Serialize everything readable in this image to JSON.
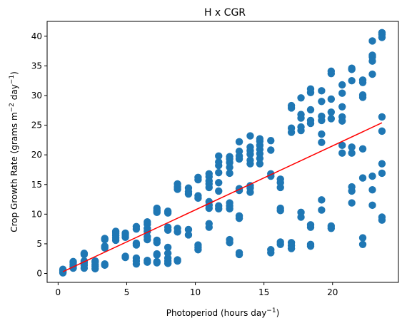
{
  "chart_data": {
    "type": "scatter",
    "title": "H x CGR",
    "xlabel": "Photoperiod (hours day",
    "xlabel_sup": "−1",
    "xlabel_tail": ")",
    "ylabel": "Crop Growth Rate (grams m",
    "ylabel_sup1": "−2",
    "ylabel_mid": " day",
    "ylabel_sup2": "−1",
    "ylabel_tail": ")",
    "xlim": [
      -0.8,
      24.8
    ],
    "ylim": [
      -1.5,
      42.5
    ],
    "xticks": [
      0,
      5,
      10,
      15,
      20
    ],
    "yticks": [
      0,
      5,
      10,
      15,
      20,
      25,
      30,
      35,
      40
    ],
    "grid": false,
    "point_color": "#1f77b4",
    "line_color": "#ff0000",
    "fit_line": {
      "x": [
        0.35,
        23.6
      ],
      "y": [
        0.3,
        25.4
      ]
    },
    "points": [
      [
        0.35,
        0.1
      ],
      [
        0.35,
        0.3
      ],
      [
        0.35,
        0.5
      ],
      [
        0.35,
        0.7
      ],
      [
        1.1,
        0.9
      ],
      [
        1.1,
        1.2
      ],
      [
        1.1,
        1.5
      ],
      [
        1.1,
        1.8
      ],
      [
        1.1,
        2.0
      ],
      [
        1.9,
        0.9
      ],
      [
        1.9,
        1.4
      ],
      [
        1.9,
        1.8
      ],
      [
        1.9,
        2.1
      ],
      [
        1.9,
        3.2
      ],
      [
        1.9,
        3.4
      ],
      [
        2.7,
        0.8
      ],
      [
        2.7,
        1.2
      ],
      [
        2.7,
        1.5
      ],
      [
        2.7,
        1.9
      ],
      [
        2.7,
        2.1
      ],
      [
        3.4,
        1.4
      ],
      [
        3.4,
        1.6
      ],
      [
        3.4,
        4.3
      ],
      [
        3.4,
        4.6
      ],
      [
        3.4,
        5.7
      ],
      [
        3.4,
        5.9
      ],
      [
        4.2,
        5.6
      ],
      [
        4.2,
        6.0
      ],
      [
        4.2,
        6.4
      ],
      [
        4.2,
        6.8
      ],
      [
        4.2,
        7.1
      ],
      [
        4.9,
        2.7
      ],
      [
        4.9,
        2.9
      ],
      [
        4.9,
        6.1
      ],
      [
        4.9,
        6.5
      ],
      [
        4.9,
        6.8
      ],
      [
        5.7,
        1.6
      ],
      [
        5.7,
        2.1
      ],
      [
        5.7,
        2.6
      ],
      [
        5.7,
        4.8
      ],
      [
        5.7,
        5.1
      ],
      [
        5.7,
        7.5
      ],
      [
        5.7,
        7.9
      ],
      [
        6.5,
        1.9
      ],
      [
        6.5,
        2.2
      ],
      [
        6.5,
        5.7
      ],
      [
        6.5,
        6.2
      ],
      [
        6.5,
        7.1
      ],
      [
        6.5,
        7.6
      ],
      [
        6.5,
        8.3
      ],
      [
        6.5,
        8.7
      ],
      [
        7.2,
        1.8
      ],
      [
        7.2,
        2.0
      ],
      [
        7.2,
        3.1
      ],
      [
        7.2,
        3.3
      ],
      [
        7.2,
        5.2
      ],
      [
        7.2,
        5.6
      ],
      [
        7.2,
        10.3
      ],
      [
        7.2,
        10.6
      ],
      [
        7.2,
        11.0
      ],
      [
        8.0,
        1.7
      ],
      [
        8.0,
        2.1
      ],
      [
        8.0,
        2.6
      ],
      [
        8.0,
        3.4
      ],
      [
        8.0,
        4.4
      ],
      [
        8.0,
        7.3
      ],
      [
        8.0,
        7.8
      ],
      [
        8.0,
        10.2
      ],
      [
        8.0,
        10.5
      ],
      [
        8.7,
        2.1
      ],
      [
        8.7,
        2.3
      ],
      [
        8.7,
        7.0
      ],
      [
        8.7,
        7.6
      ],
      [
        8.7,
        14.2
      ],
      [
        8.7,
        14.6
      ],
      [
        8.7,
        15.1
      ],
      [
        9.5,
        6.5
      ],
      [
        9.5,
        7.4
      ],
      [
        9.5,
        13.4
      ],
      [
        9.5,
        13.8
      ],
      [
        9.5,
        14.4
      ],
      [
        10.2,
        4.0
      ],
      [
        10.2,
        4.4
      ],
      [
        10.2,
        4.8
      ],
      [
        10.2,
        12.7
      ],
      [
        10.2,
        13.1
      ],
      [
        10.2,
        15.8
      ],
      [
        10.2,
        16.2
      ],
      [
        11.0,
        7.8
      ],
      [
        11.0,
        8.4
      ],
      [
        11.0,
        11.0
      ],
      [
        11.0,
        11.5
      ],
      [
        11.0,
        12.1
      ],
      [
        11.0,
        14.5
      ],
      [
        11.0,
        15.1
      ],
      [
        11.0,
        15.6
      ],
      [
        11.0,
        16.3
      ],
      [
        11.0,
        16.8
      ],
      [
        11.7,
        10.9
      ],
      [
        11.7,
        11.4
      ],
      [
        11.7,
        13.9
      ],
      [
        11.7,
        15.3
      ],
      [
        11.7,
        17.0
      ],
      [
        11.7,
        18.2
      ],
      [
        11.7,
        18.8
      ],
      [
        11.7,
        19.8
      ],
      [
        12.5,
        5.2
      ],
      [
        12.5,
        5.7
      ],
      [
        12.5,
        10.9
      ],
      [
        12.5,
        11.4
      ],
      [
        12.5,
        11.9
      ],
      [
        12.5,
        16.9
      ],
      [
        12.5,
        17.9
      ],
      [
        12.5,
        18.7
      ],
      [
        12.5,
        19.3
      ],
      [
        12.5,
        19.7
      ],
      [
        13.2,
        3.2
      ],
      [
        13.2,
        3.5
      ],
      [
        13.2,
        9.3
      ],
      [
        13.2,
        9.7
      ],
      [
        13.2,
        14.0
      ],
      [
        13.2,
        14.3
      ],
      [
        13.2,
        19.3
      ],
      [
        13.2,
        19.8
      ],
      [
        13.2,
        20.6
      ],
      [
        13.2,
        22.2
      ],
      [
        14.0,
        13.7
      ],
      [
        14.0,
        14.4
      ],
      [
        14.0,
        14.8
      ],
      [
        14.0,
        18.5
      ],
      [
        14.0,
        19.1
      ],
      [
        14.0,
        20.1
      ],
      [
        14.0,
        20.7
      ],
      [
        14.0,
        21.3
      ],
      [
        14.0,
        23.2
      ],
      [
        14.7,
        18.5
      ],
      [
        14.7,
        19.4
      ],
      [
        14.7,
        20.2
      ],
      [
        14.7,
        20.9
      ],
      [
        14.7,
        21.6
      ],
      [
        14.7,
        22.3
      ],
      [
        14.7,
        22.7
      ],
      [
        15.5,
        3.5
      ],
      [
        15.5,
        4.0
      ],
      [
        15.5,
        16.4
      ],
      [
        15.5,
        16.8
      ],
      [
        15.5,
        20.8
      ],
      [
        15.5,
        22.4
      ],
      [
        16.2,
        4.9
      ],
      [
        16.2,
        5.3
      ],
      [
        16.2,
        10.6
      ],
      [
        16.2,
        11.0
      ],
      [
        16.2,
        14.5
      ],
      [
        16.2,
        15.3
      ],
      [
        16.2,
        15.9
      ],
      [
        17.0,
        4.2
      ],
      [
        17.0,
        4.7
      ],
      [
        17.0,
        5.2
      ],
      [
        17.0,
        23.8
      ],
      [
        17.0,
        24.5
      ],
      [
        17.0,
        27.9
      ],
      [
        17.0,
        28.3
      ],
      [
        17.7,
        9.5
      ],
      [
        17.7,
        10.3
      ],
      [
        17.7,
        24.1
      ],
      [
        17.7,
        24.7
      ],
      [
        17.7,
        26.2
      ],
      [
        17.7,
        26.8
      ],
      [
        17.7,
        29.6
      ],
      [
        18.4,
        4.6
      ],
      [
        18.4,
        4.9
      ],
      [
        18.4,
        7.8
      ],
      [
        18.4,
        8.2
      ],
      [
        18.4,
        25.3
      ],
      [
        18.4,
        25.8
      ],
      [
        18.4,
        27.6
      ],
      [
        18.4,
        30.5
      ],
      [
        18.4,
        31.1
      ],
      [
        19.2,
        10.7
      ],
      [
        19.2,
        12.4
      ],
      [
        19.2,
        22.1
      ],
      [
        19.2,
        23.5
      ],
      [
        19.2,
        25.8
      ],
      [
        19.2,
        26.5
      ],
      [
        19.2,
        29.0
      ],
      [
        19.2,
        30.8
      ],
      [
        19.9,
        7.6
      ],
      [
        19.9,
        8.0
      ],
      [
        19.9,
        26.1
      ],
      [
        19.9,
        27.2
      ],
      [
        19.9,
        29.4
      ],
      [
        19.9,
        33.7
      ],
      [
        19.9,
        34.1
      ],
      [
        20.7,
        20.3
      ],
      [
        20.7,
        21.6
      ],
      [
        20.7,
        25.7
      ],
      [
        20.7,
        26.4
      ],
      [
        20.7,
        28.1
      ],
      [
        20.7,
        30.4
      ],
      [
        20.7,
        31.8
      ],
      [
        21.4,
        11.9
      ],
      [
        21.4,
        13.9
      ],
      [
        21.4,
        14.6
      ],
      [
        21.4,
        20.3
      ],
      [
        21.4,
        21.3
      ],
      [
        21.4,
        32.5
      ],
      [
        21.4,
        34.4
      ],
      [
        21.4,
        34.6
      ],
      [
        22.2,
        4.9
      ],
      [
        22.2,
        6.0
      ],
      [
        22.2,
        16.1
      ],
      [
        22.2,
        21.0
      ],
      [
        22.2,
        29.7
      ],
      [
        22.2,
        30.1
      ],
      [
        22.2,
        32.2
      ],
      [
        22.2,
        32.6
      ],
      [
        22.9,
        11.5
      ],
      [
        22.9,
        14.1
      ],
      [
        22.9,
        16.4
      ],
      [
        22.9,
        33.6
      ],
      [
        22.9,
        35.8
      ],
      [
        22.9,
        36.5
      ],
      [
        22.9,
        36.8
      ],
      [
        22.9,
        39.2
      ],
      [
        23.6,
        9.0
      ],
      [
        23.6,
        9.5
      ],
      [
        23.6,
        16.9
      ],
      [
        23.6,
        18.5
      ],
      [
        23.6,
        24.0
      ],
      [
        23.6,
        26.4
      ],
      [
        23.6,
        39.8
      ],
      [
        23.6,
        40.3
      ],
      [
        23.6,
        40.6
      ]
    ]
  }
}
